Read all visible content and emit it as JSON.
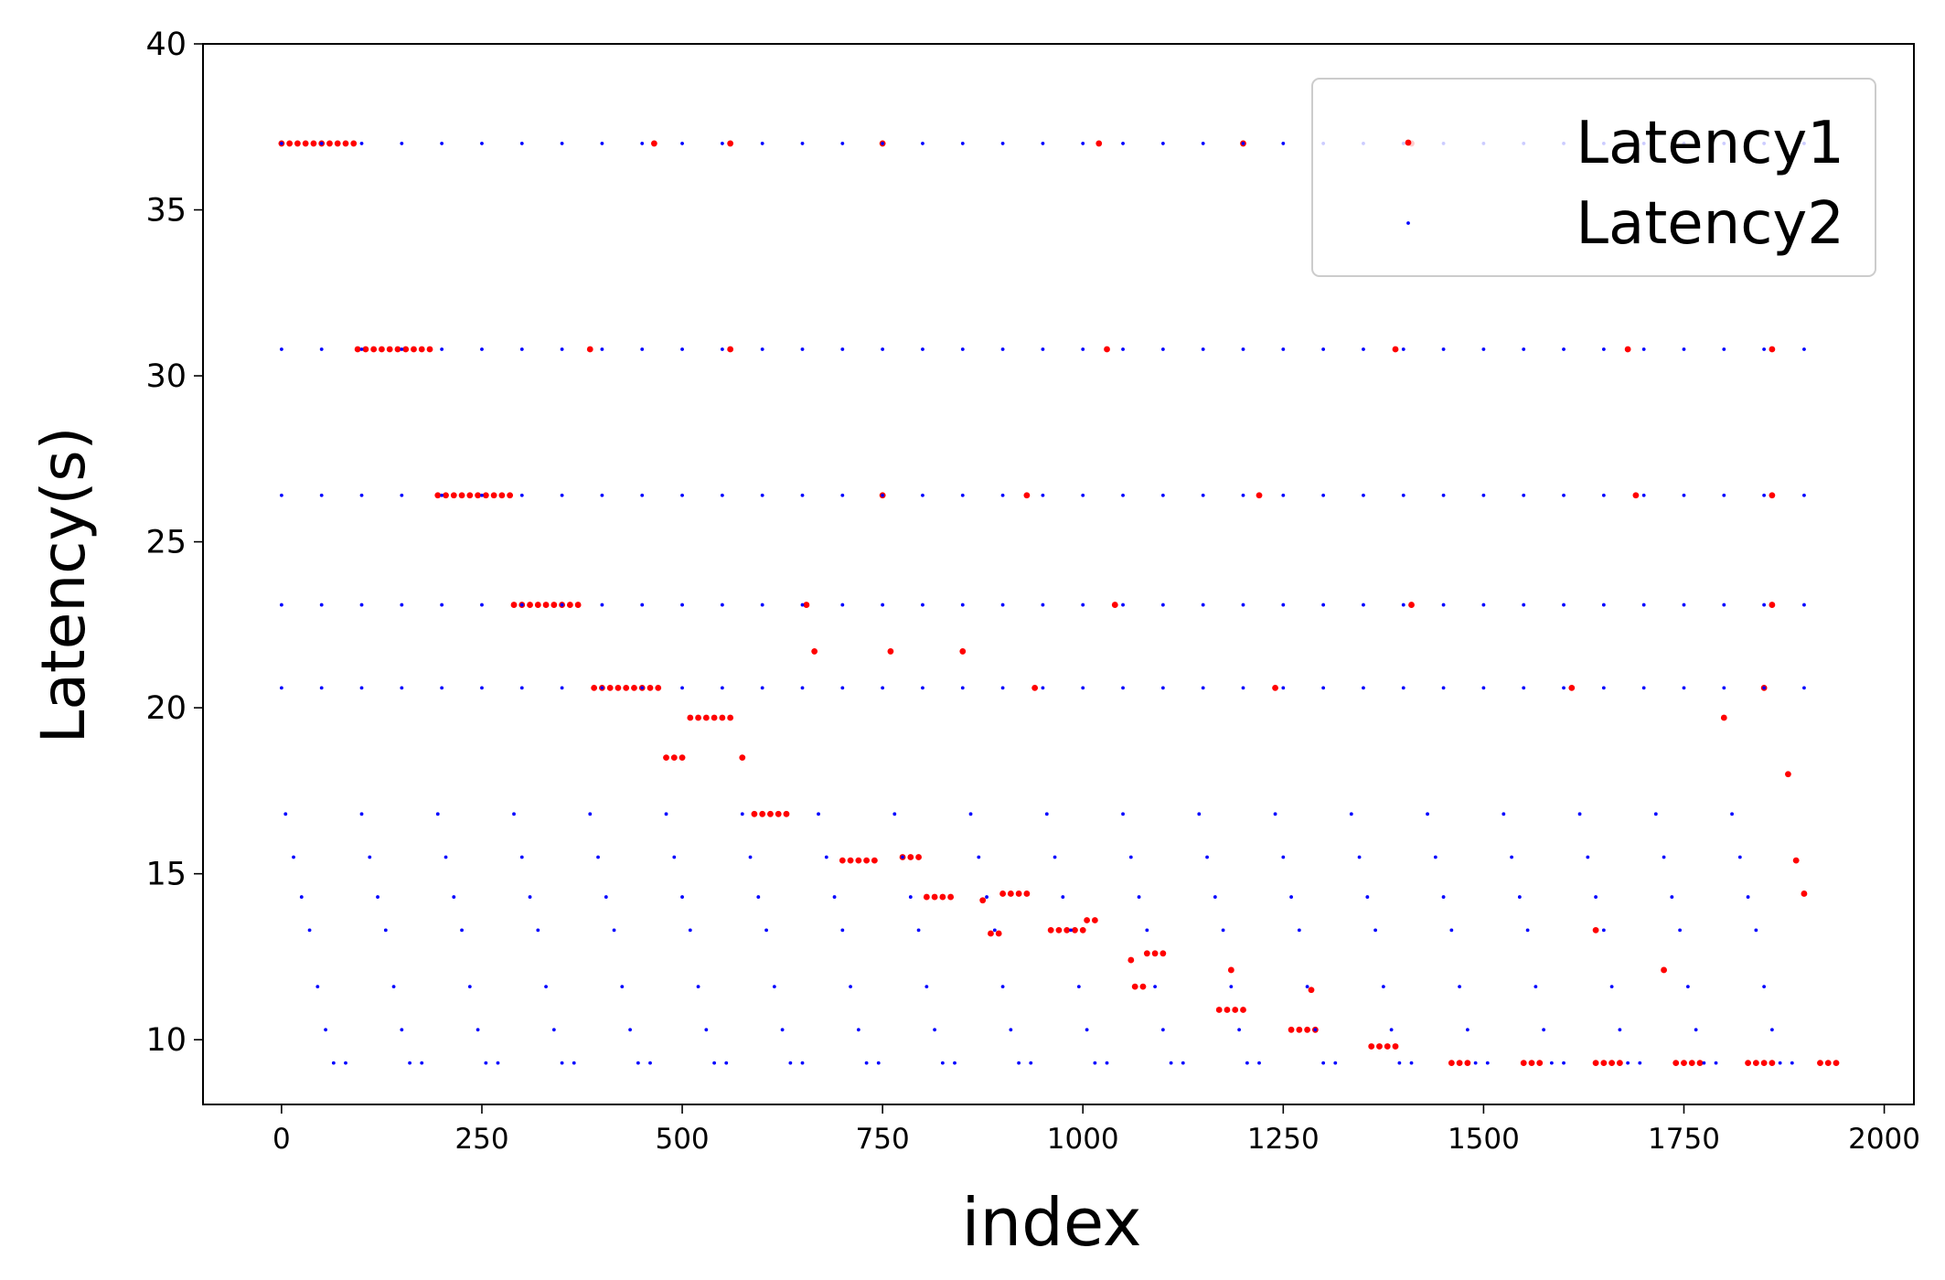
{
  "chart_data": {
    "type": "scatter",
    "x_label": "index",
    "y_label": "Latency(s)",
    "xlim": [
      -98,
      2037
    ],
    "ylim": [
      8.05,
      40
    ],
    "xticks": [
      0,
      250,
      500,
      750,
      1000,
      1250,
      1500,
      1750,
      2000
    ],
    "yticks": [
      10,
      15,
      20,
      25,
      30,
      35,
      40
    ],
    "grid": false,
    "legend_loc": "upper right",
    "series": [
      {
        "name": "Latency1",
        "color": "#ff0000",
        "x": [
          0,
          10,
          20,
          30,
          40,
          50,
          60,
          70,
          80,
          90,
          95,
          105,
          115,
          125,
          135,
          145,
          155,
          165,
          175,
          185,
          195,
          205,
          215,
          225,
          235,
          245,
          255,
          265,
          275,
          285,
          290,
          300,
          310,
          320,
          330,
          340,
          350,
          360,
          370,
          390,
          400,
          410,
          420,
          430,
          440,
          450,
          460,
          470,
          480,
          490,
          500,
          510,
          520,
          530,
          540,
          550,
          560,
          575,
          590,
          600,
          610,
          620,
          630,
          665,
          760,
          850,
          700,
          710,
          720,
          730,
          740,
          775,
          785,
          795,
          805,
          815,
          825,
          835,
          875,
          885,
          895,
          900,
          910,
          920,
          930,
          960,
          970,
          980,
          990,
          1000,
          1005,
          1015,
          1080,
          1090,
          1100,
          1065,
          1075,
          1060,
          1170,
          1180,
          1190,
          1200,
          1185,
          1260,
          1270,
          1280,
          1290,
          1285,
          1360,
          1370,
          1380,
          1390,
          1460,
          1470,
          1480,
          1550,
          1560,
          1570,
          1640,
          1650,
          1660,
          1670,
          1740,
          1750,
          1760,
          1770,
          1830,
          1840,
          1850,
          1860,
          1920,
          1930,
          1940,
          465,
          560,
          750,
          1020,
          1200,
          1410,
          385,
          560,
          1030,
          1390,
          1680,
          1860,
          750,
          930,
          1220,
          1690,
          1860,
          655,
          1040,
          1410,
          1860,
          940,
          1240,
          1610,
          1850,
          1800,
          1880,
          1890,
          1900,
          1640,
          1725
        ],
        "values": [
          37,
          37,
          37,
          37,
          37,
          37,
          37,
          37,
          37,
          37,
          30.8,
          30.8,
          30.8,
          30.8,
          30.8,
          30.8,
          30.8,
          30.8,
          30.8,
          30.8,
          26.4,
          26.4,
          26.4,
          26.4,
          26.4,
          26.4,
          26.4,
          26.4,
          26.4,
          26.4,
          23.1,
          23.1,
          23.1,
          23.1,
          23.1,
          23.1,
          23.1,
          23.1,
          23.1,
          20.6,
          20.6,
          20.6,
          20.6,
          20.6,
          20.6,
          20.6,
          20.6,
          20.6,
          18.5,
          18.5,
          18.5,
          19.7,
          19.7,
          19.7,
          19.7,
          19.7,
          19.7,
          18.5,
          16.8,
          16.8,
          16.8,
          16.8,
          16.8,
          21.7,
          21.7,
          21.7,
          15.4,
          15.4,
          15.4,
          15.4,
          15.4,
          15.5,
          15.5,
          15.5,
          14.3,
          14.3,
          14.3,
          14.3,
          14.2,
          13.2,
          13.2,
          14.4,
          14.4,
          14.4,
          14.4,
          13.3,
          13.3,
          13.3,
          13.3,
          13.3,
          13.6,
          13.6,
          12.6,
          12.6,
          12.6,
          11.6,
          11.6,
          12.4,
          10.9,
          10.9,
          10.9,
          10.9,
          12.1,
          10.3,
          10.3,
          10.3,
          10.3,
          11.5,
          9.8,
          9.8,
          9.8,
          9.8,
          9.3,
          9.3,
          9.3,
          9.3,
          9.3,
          9.3,
          9.3,
          9.3,
          9.3,
          9.3,
          9.3,
          9.3,
          9.3,
          9.3,
          9.3,
          9.3,
          9.3,
          9.3,
          9.3,
          9.3,
          9.3,
          37,
          37,
          37,
          37,
          37,
          37,
          30.8,
          30.8,
          30.8,
          30.8,
          30.8,
          30.8,
          26.4,
          26.4,
          26.4,
          26.4,
          26.4,
          23.1,
          23.1,
          23.1,
          23.1,
          20.6,
          20.6,
          20.6,
          20.6,
          19.7,
          18.0,
          15.4,
          14.4,
          13.3,
          12.1
        ]
      },
      {
        "name": "Latency2",
        "color": "#0000ff",
        "x": [
          0,
          50,
          100,
          150,
          200,
          250,
          300,
          350,
          400,
          450,
          500,
          550,
          600,
          650,
          700,
          750,
          800,
          850,
          900,
          950,
          1000,
          1050,
          1100,
          1150,
          1200,
          1250,
          1300,
          1350,
          1400,
          1450,
          1500,
          1550,
          1600,
          1650,
          1700,
          1750,
          1800,
          1850,
          1900,
          0,
          50,
          100,
          150,
          200,
          250,
          300,
          350,
          400,
          450,
          500,
          550,
          600,
          650,
          700,
          750,
          800,
          850,
          900,
          950,
          1000,
          1050,
          1100,
          1150,
          1200,
          1250,
          1300,
          1350,
          1400,
          1450,
          1500,
          1550,
          1600,
          1650,
          1700,
          1750,
          1800,
          1850,
          1900,
          0,
          50,
          100,
          150,
          200,
          250,
          300,
          350,
          400,
          450,
          500,
          550,
          600,
          650,
          700,
          750,
          800,
          850,
          900,
          950,
          1000,
          1050,
          1100,
          1150,
          1200,
          1250,
          1300,
          1350,
          1400,
          1450,
          1500,
          1550,
          1600,
          1650,
          1700,
          1750,
          1800,
          1850,
          1900,
          0,
          50,
          100,
          150,
          200,
          250,
          300,
          350,
          400,
          450,
          500,
          550,
          600,
          650,
          700,
          750,
          800,
          850,
          900,
          950,
          1000,
          1050,
          1100,
          1150,
          1200,
          1250,
          1300,
          1350,
          1400,
          1450,
          1500,
          1550,
          1600,
          1650,
          1700,
          1750,
          1800,
          1850,
          1900,
          0,
          50,
          100,
          150,
          200,
          250,
          300,
          350,
          400,
          450,
          500,
          550,
          600,
          650,
          700,
          750,
          800,
          850,
          900,
          950,
          1000,
          1050,
          1100,
          1150,
          1200,
          1250,
          1300,
          1350,
          1400,
          1450,
          1500,
          1550,
          1600,
          1650,
          1700,
          1750,
          1800,
          1850,
          1900,
          5,
          15,
          25,
          35,
          45,
          55,
          65,
          80,
          100,
          110,
          120,
          130,
          140,
          150,
          160,
          175,
          195,
          205,
          215,
          225,
          235,
          245,
          255,
          270,
          290,
          300,
          310,
          320,
          330,
          340,
          350,
          365,
          385,
          395,
          405,
          415,
          425,
          435,
          445,
          460,
          480,
          490,
          500,
          510,
          520,
          530,
          540,
          555,
          575,
          585,
          595,
          605,
          615,
          625,
          635,
          650,
          670,
          680,
          690,
          700,
          710,
          720,
          730,
          745,
          765,
          775,
          785,
          795,
          805,
          815,
          825,
          840,
          860,
          870,
          880,
          890,
          900,
          910,
          920,
          935,
          955,
          965,
          975,
          985,
          995,
          1005,
          1015,
          1030,
          1050,
          1060,
          1070,
          1080,
          1090,
          1100,
          1110,
          1125,
          1145,
          1155,
          1165,
          1175,
          1185,
          1195,
          1205,
          1220,
          1240,
          1250,
          1260,
          1270,
          1280,
          1290,
          1300,
          1315,
          1335,
          1345,
          1355,
          1365,
          1375,
          1385,
          1395,
          1410,
          1430,
          1440,
          1450,
          1460,
          1470,
          1480,
          1490,
          1505,
          1525,
          1535,
          1545,
          1555,
          1565,
          1575,
          1585,
          1600,
          1620,
          1630,
          1640,
          1650,
          1660,
          1670,
          1680,
          1695,
          1715,
          1725,
          1735,
          1745,
          1755,
          1765,
          1775,
          1790,
          1810,
          1820,
          1830,
          1840,
          1850,
          1860,
          1870,
          1885
        ],
        "values": [
          37,
          37,
          37,
          37,
          37,
          37,
          37,
          37,
          37,
          37,
          37,
          37,
          37,
          37,
          37,
          37,
          37,
          37,
          37,
          37,
          37,
          37,
          37,
          37,
          37,
          37,
          37,
          37,
          37,
          37,
          37,
          37,
          37,
          37,
          37,
          37,
          37,
          37,
          37,
          30.8,
          30.8,
          30.8,
          30.8,
          30.8,
          30.8,
          30.8,
          30.8,
          30.8,
          30.8,
          30.8,
          30.8,
          30.8,
          30.8,
          30.8,
          30.8,
          30.8,
          30.8,
          30.8,
          30.8,
          30.8,
          30.8,
          30.8,
          30.8,
          30.8,
          30.8,
          30.8,
          30.8,
          30.8,
          30.8,
          30.8,
          30.8,
          30.8,
          30.8,
          30.8,
          30.8,
          30.8,
          30.8,
          30.8,
          26.4,
          26.4,
          26.4,
          26.4,
          26.4,
          26.4,
          26.4,
          26.4,
          26.4,
          26.4,
          26.4,
          26.4,
          26.4,
          26.4,
          26.4,
          26.4,
          26.4,
          26.4,
          26.4,
          26.4,
          26.4,
          26.4,
          26.4,
          26.4,
          26.4,
          26.4,
          26.4,
          26.4,
          26.4,
          26.4,
          26.4,
          26.4,
          26.4,
          26.4,
          26.4,
          26.4,
          26.4,
          26.4,
          26.4,
          23.1,
          23.1,
          23.1,
          23.1,
          23.1,
          23.1,
          23.1,
          23.1,
          23.1,
          23.1,
          23.1,
          23.1,
          23.1,
          23.1,
          23.1,
          23.1,
          23.1,
          23.1,
          23.1,
          23.1,
          23.1,
          23.1,
          23.1,
          23.1,
          23.1,
          23.1,
          23.1,
          23.1,
          23.1,
          23.1,
          23.1,
          23.1,
          23.1,
          23.1,
          23.1,
          23.1,
          23.1,
          23.1,
          23.1,
          20.6,
          20.6,
          20.6,
          20.6,
          20.6,
          20.6,
          20.6,
          20.6,
          20.6,
          20.6,
          20.6,
          20.6,
          20.6,
          20.6,
          20.6,
          20.6,
          20.6,
          20.6,
          20.6,
          20.6,
          20.6,
          20.6,
          20.6,
          20.6,
          20.6,
          20.6,
          20.6,
          20.6,
          20.6,
          20.6,
          20.6,
          20.6,
          20.6,
          20.6,
          20.6,
          20.6,
          20.6,
          20.6,
          20.6,
          16.8,
          15.5,
          14.3,
          13.3,
          11.6,
          10.3,
          9.3,
          9.3,
          16.8,
          15.5,
          14.3,
          13.3,
          11.6,
          10.3,
          9.3,
          9.3,
          16.8,
          15.5,
          14.3,
          13.3,
          11.6,
          10.3,
          9.3,
          9.3,
          16.8,
          15.5,
          14.3,
          13.3,
          11.6,
          10.3,
          9.3,
          9.3,
          16.8,
          15.5,
          14.3,
          13.3,
          11.6,
          10.3,
          9.3,
          9.3,
          16.8,
          15.5,
          14.3,
          13.3,
          11.6,
          10.3,
          9.3,
          9.3,
          16.8,
          15.5,
          14.3,
          13.3,
          11.6,
          10.3,
          9.3,
          9.3,
          16.8,
          15.5,
          14.3,
          13.3,
          11.6,
          10.3,
          9.3,
          9.3,
          16.8,
          15.5,
          14.3,
          13.3,
          11.6,
          10.3,
          9.3,
          9.3,
          16.8,
          15.5,
          14.3,
          13.3,
          11.6,
          10.3,
          9.3,
          9.3,
          16.8,
          15.5,
          14.3,
          13.3,
          11.6,
          10.3,
          9.3,
          9.3,
          16.8,
          15.5,
          14.3,
          13.3,
          11.6,
          10.3,
          9.3,
          9.3,
          16.8,
          15.5,
          14.3,
          13.3,
          11.6,
          10.3,
          9.3,
          9.3,
          16.8,
          15.5,
          14.3,
          13.3,
          11.6,
          10.3,
          9.3,
          9.3,
          16.8,
          15.5,
          14.3,
          13.3,
          11.6,
          10.3,
          9.3,
          9.3,
          16.8,
          15.5,
          14.3,
          13.3,
          11.6,
          10.3,
          9.3,
          9.3,
          16.8,
          15.5,
          14.3,
          13.3,
          11.6,
          10.3,
          9.3,
          9.3,
          16.8,
          15.5,
          14.3,
          13.3,
          11.6,
          10.3,
          9.3,
          9.3,
          16.8,
          15.5,
          14.3,
          13.3,
          11.6,
          10.3,
          9.3,
          9.3,
          16.8,
          15.5,
          14.3,
          13.3,
          11.6,
          10.3,
          9.3,
          9.3
        ]
      }
    ]
  }
}
